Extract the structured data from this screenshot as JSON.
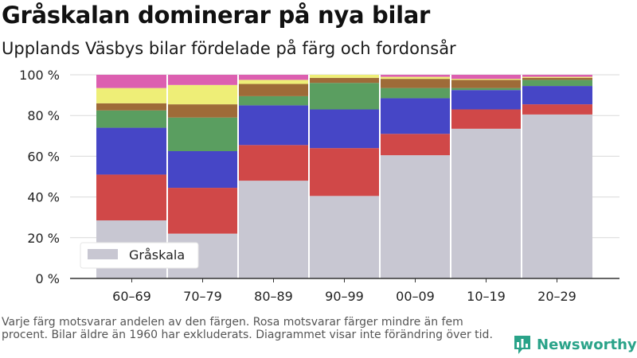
{
  "header": {
    "title": "Gråskalan dominerar på nya bilar",
    "subtitle": "Upplands Väsbys bilar fördelade på färg och fordonsår"
  },
  "footer": {
    "note": "Varje färg motsvarar andelen av den färgen. Rosa motsvarar färger mindre än fem procent. Bilar äldre än 1960 har exkluderats. Diagrammet visar inte förändring över tid.",
    "brand": "Newsworthy"
  },
  "chart_data": {
    "type": "bar",
    "stacked": true,
    "categories": [
      "60–69",
      "70–79",
      "80–89",
      "90–99",
      "00–09",
      "10–19",
      "20–29"
    ],
    "ylim": [
      0,
      100
    ],
    "yticks": [
      0,
      20,
      40,
      60,
      80,
      100
    ],
    "ytick_labels": [
      "0 %",
      "20 %",
      "40 %",
      "60 %",
      "80 %",
      "100 %"
    ],
    "legend": {
      "label": "Gråskala",
      "position": "bottom-left"
    },
    "grid": true,
    "series": [
      {
        "name": "Gråskala",
        "color": "#c8c7d2",
        "values": [
          28.5,
          22,
          48,
          40.5,
          60.5,
          73.5,
          80.5
        ]
      },
      {
        "color": "#d04848",
        "values": [
          22.5,
          22.5,
          17.5,
          23.5,
          10.5,
          9.5,
          5
        ]
      },
      {
        "color": "#4646c6",
        "values": [
          23,
          18,
          19.5,
          19,
          17.5,
          9.5,
          9
        ]
      },
      {
        "color": "#5a9e60",
        "values": [
          8.5,
          16.5,
          4.5,
          13,
          5,
          1,
          3
        ]
      },
      {
        "color": "#9e6b38",
        "values": [
          3.5,
          6.5,
          6,
          2.5,
          4.5,
          4,
          1
        ]
      },
      {
        "color": "#eeee77",
        "values": [
          7.5,
          9.5,
          2,
          1.5,
          1,
          0.5,
          0.5
        ]
      },
      {
        "color": "#dc5fb0",
        "values": [
          6.5,
          5,
          2.5,
          0,
          1,
          2,
          1
        ]
      }
    ]
  }
}
